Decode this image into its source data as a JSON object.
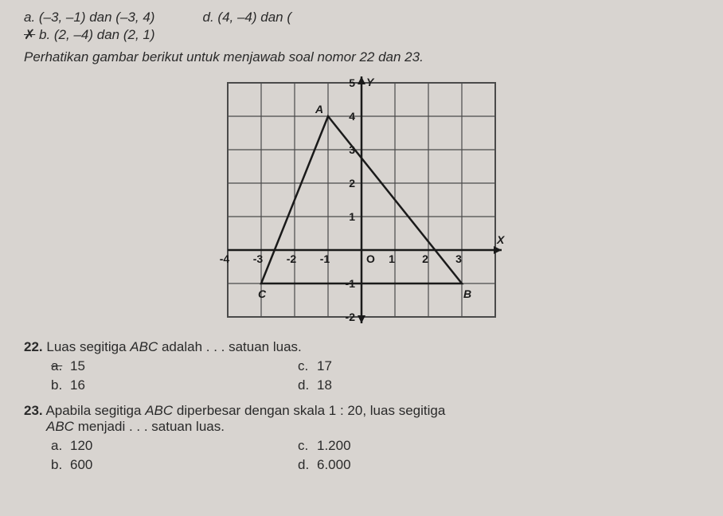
{
  "top": {
    "a": "a.  (–3, –1) dan (–3, 4)",
    "b": "b.  (2, –4) dan (2, 1)",
    "d": "d.  (4, –4) dan ("
  },
  "instruction": "Perhatikan gambar berikut untuk menjawab soal nomor 22 dan 23.",
  "graph": {
    "cell": 42,
    "cols": 8,
    "rows": 7,
    "origin_col": 4,
    "origin_row": 5,
    "axis_labels": {
      "x": "X",
      "y": "Y"
    },
    "x_ticks": [
      {
        "v": -4,
        "label": "-4"
      },
      {
        "v": -3,
        "label": "-3"
      },
      {
        "v": -2,
        "label": "-2"
      },
      {
        "v": -1,
        "label": "-1"
      },
      {
        "v": 0,
        "label": "O"
      },
      {
        "v": 1,
        "label": "1"
      },
      {
        "v": 2,
        "label": "2"
      },
      {
        "v": 3,
        "label": "3"
      }
    ],
    "y_ticks": [
      {
        "v": 5,
        "label": "5"
      },
      {
        "v": 4,
        "label": "4"
      },
      {
        "v": 3,
        "label": "3"
      },
      {
        "v": 2,
        "label": "2"
      },
      {
        "v": 1,
        "label": "1"
      },
      {
        "v": -1,
        "label": "-1"
      },
      {
        "v": -2,
        "label": "-2"
      }
    ],
    "points": {
      "A": {
        "x": -1,
        "y": 4,
        "label": "A"
      },
      "B": {
        "x": 3,
        "y": -1,
        "label": "B"
      },
      "C": {
        "x": -3,
        "y": -1,
        "label": "C"
      }
    },
    "style": {
      "grid_color": "#4a4a4a",
      "axis_color": "#1a1a1a",
      "line_color": "#1a1a1a",
      "font_size": 14,
      "axis_width": 2.5,
      "grid_width": 1.2,
      "tri_width": 2.5
    }
  },
  "q22": {
    "num": "22.",
    "text_pre": "Luas segitiga ",
    "abc": "ABC",
    "text_post": " adalah . . . satuan luas.",
    "opts": {
      "a": {
        "letter": "a.",
        "val": "15",
        "strike": true
      },
      "b": {
        "letter": "b.",
        "val": "16"
      },
      "c": {
        "letter": "c.",
        "val": "17"
      },
      "d": {
        "letter": "d.",
        "val": "18"
      }
    }
  },
  "q23": {
    "num": "23.",
    "text_pre": "Apabila segitiga ",
    "abc": "ABC",
    "text_mid": " diperbesar dengan skala 1 : 20, luas segitiga ",
    "abc2": "ABC",
    "text_post": " menjadi . . . satuan luas.",
    "opts": {
      "a": {
        "letter": "a.",
        "val": "120"
      },
      "b": {
        "letter": "b.",
        "val": "600"
      },
      "c": {
        "letter": "c.",
        "val": "1.200"
      },
      "d": {
        "letter": "d.",
        "val": "6.000"
      }
    }
  }
}
